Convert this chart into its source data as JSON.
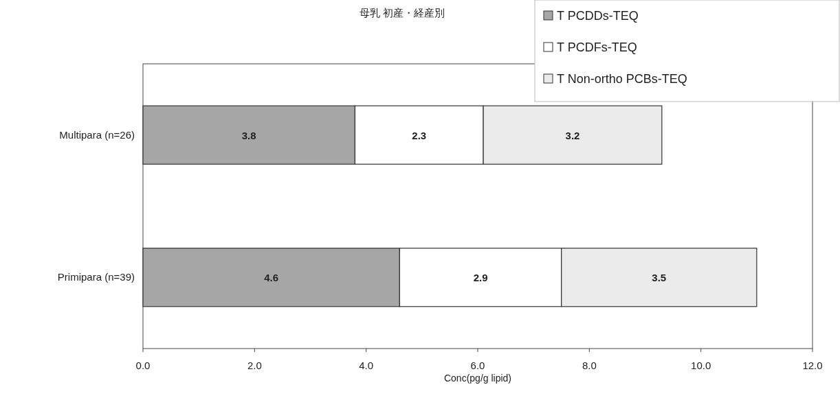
{
  "chart_data": {
    "type": "bar",
    "orientation": "horizontal",
    "stacked": true,
    "title": "母乳 初産・経産別",
    "xlabel": "Conc(pg/g lipid)",
    "categories": [
      "Multipara (n=26)",
      "Primipara (n=39)"
    ],
    "series": [
      {
        "name": "T PCDDs-TEQ",
        "color": "#a6a6a6",
        "values": [
          3.8,
          4.6
        ]
      },
      {
        "name": "T PCDFs-TEQ",
        "color": "#ffffff",
        "values": [
          2.3,
          2.9
        ]
      },
      {
        "name": "T Non-ortho PCBs-TEQ",
        "color": "#ebebeb",
        "values": [
          3.2,
          3.5
        ]
      }
    ],
    "xlim": [
      0,
      12
    ],
    "xticks": [
      {
        "value": 0,
        "label": "0.0"
      },
      {
        "value": 2,
        "label": "2.0"
      },
      {
        "value": 4,
        "label": "4.0"
      },
      {
        "value": 6,
        "label": "6.0"
      },
      {
        "value": 8,
        "label": "8.0"
      },
      {
        "value": 10,
        "label": "10.0"
      },
      {
        "value": 12,
        "label": "12.0"
      }
    ],
    "data_labels": true,
    "legend": "top right",
    "grid": false
  }
}
